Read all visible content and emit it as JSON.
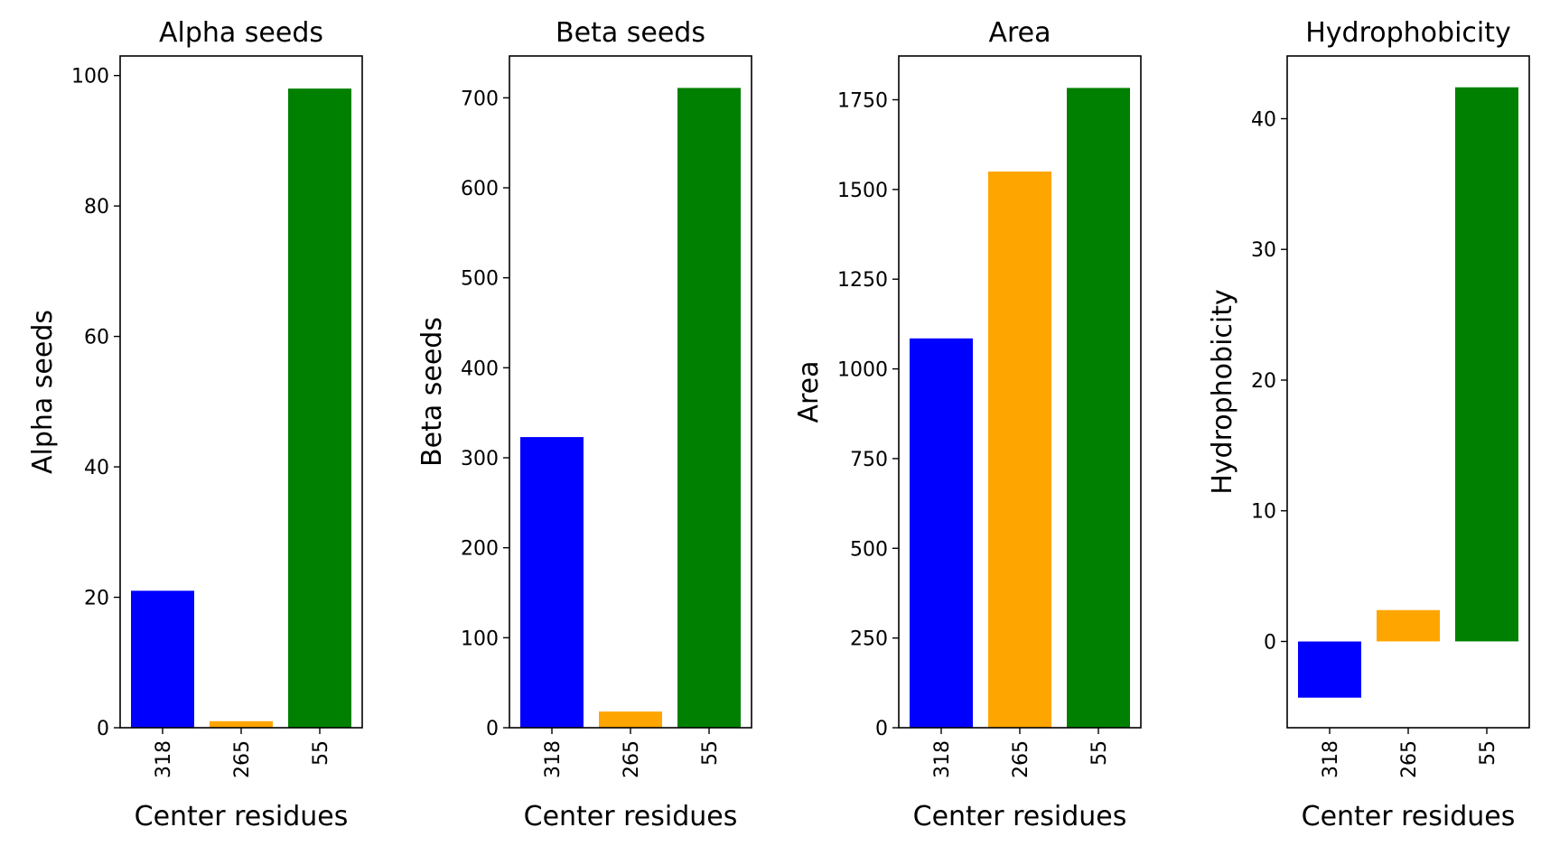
{
  "chart_data": [
    {
      "type": "bar",
      "title": "Alpha seeds",
      "xlabel": "Center residues",
      "ylabel": "Alpha seeds",
      "categories": [
        "318",
        "265",
        "55"
      ],
      "values": [
        21,
        1,
        98
      ],
      "colors": [
        "#0000ff",
        "#ffa500",
        "#008000"
      ],
      "ylim": [
        0,
        103
      ],
      "yticks": [
        0,
        20,
        40,
        60,
        80,
        100
      ],
      "ytick_labels": [
        "0",
        "20",
        "40",
        "60",
        "80",
        "100"
      ],
      "grid": false,
      "legend": "none"
    },
    {
      "type": "bar",
      "title": "Beta seeds",
      "xlabel": "Center residues",
      "ylabel": "Beta seeds",
      "categories": [
        "318",
        "265",
        "55"
      ],
      "values": [
        323,
        18,
        711
      ],
      "colors": [
        "#0000ff",
        "#ffa500",
        "#008000"
      ],
      "ylim": [
        0,
        746.5
      ],
      "yticks": [
        0,
        100,
        200,
        300,
        400,
        500,
        600,
        700
      ],
      "ytick_labels": [
        "0",
        "100",
        "200",
        "300",
        "400",
        "500",
        "600",
        "700"
      ],
      "grid": false,
      "legend": "none"
    },
    {
      "type": "bar",
      "title": "Area",
      "xlabel": "Center residues",
      "ylabel": "Area",
      "categories": [
        "318",
        "265",
        "55"
      ],
      "values": [
        1085,
        1550,
        1783
      ],
      "colors": [
        "#0000ff",
        "#ffa500",
        "#008000"
      ],
      "ylim": [
        0,
        1872
      ],
      "yticks": [
        0,
        250,
        500,
        750,
        1000,
        1250,
        1500,
        1750
      ],
      "ytick_labels": [
        "0",
        "250",
        "500",
        "750",
        "1000",
        "1250",
        "1500",
        "1750"
      ],
      "grid": false,
      "legend": "none"
    },
    {
      "type": "bar",
      "title": "Hydrophobicity",
      "xlabel": "Center residues",
      "ylabel": "Hydrophobicity",
      "categories": [
        "318",
        "265",
        "55"
      ],
      "values": [
        -4.3,
        2.4,
        42.4
      ],
      "colors": [
        "#0000ff",
        "#ffa500",
        "#008000"
      ],
      "ylim": [
        -6.6,
        44.8
      ],
      "yticks": [
        0,
        10,
        20,
        30,
        40
      ],
      "ytick_labels": [
        "0",
        "10",
        "20",
        "30",
        "40"
      ],
      "grid": false,
      "legend": "none"
    }
  ]
}
